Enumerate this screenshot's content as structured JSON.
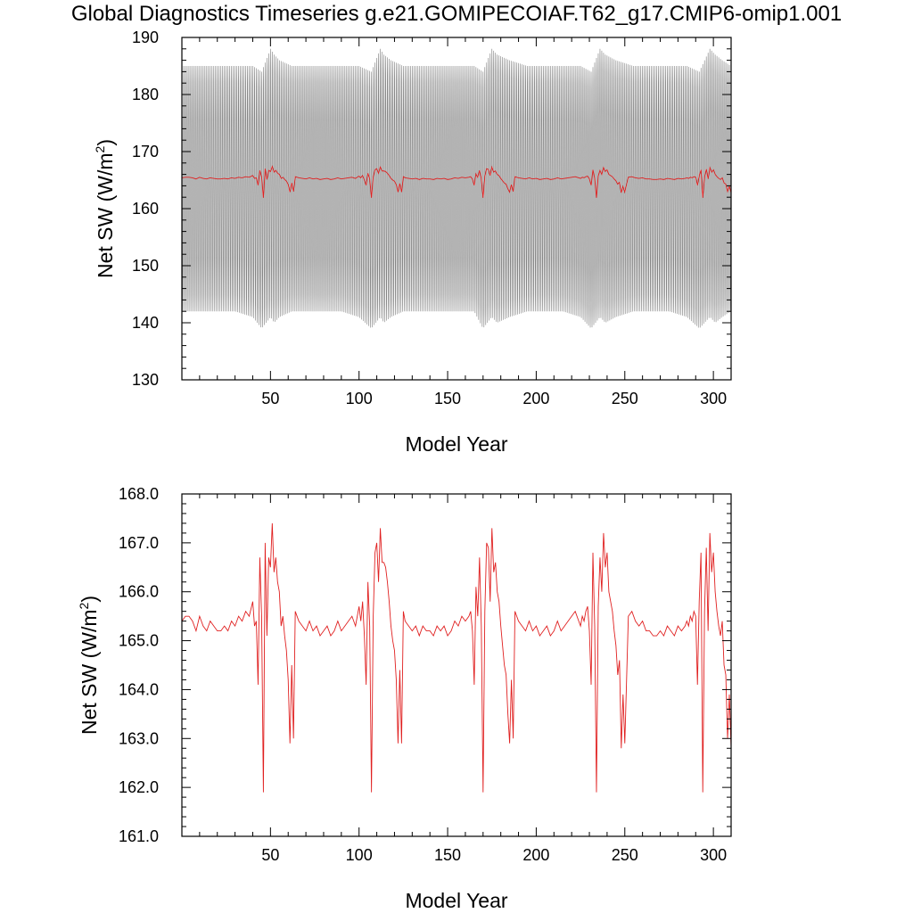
{
  "title": "Global Diagnostics Timeseries g.e21.GOMIPECOIAF.T62_g17.CMIP6-omip1.001",
  "chart_data": [
    {
      "type": "line",
      "xlabel": "Model Year",
      "ylabel": "Net SW (W/m²)",
      "ylabel_main": "Net SW (W/m",
      "ylabel_sup": "2",
      "ylabel_tail": ")",
      "xlim": [
        0,
        310
      ],
      "ylim": [
        130,
        190
      ],
      "x_ticks": [
        50,
        100,
        150,
        200,
        250,
        300
      ],
      "y_ticks": [
        130,
        140,
        150,
        160,
        170,
        180,
        190
      ],
      "tick_format": "int",
      "series": [
        {
          "color": "#808080",
          "style": "monthly-envelope",
          "x": [
            0,
            10,
            20,
            30,
            40,
            45,
            50,
            52,
            55,
            62,
            70,
            80,
            90,
            100,
            107,
            112,
            114,
            118,
            125,
            135,
            145,
            155,
            165,
            170,
            175,
            178,
            185,
            195,
            205,
            215,
            225,
            231,
            236,
            239,
            245,
            255,
            265,
            275,
            285,
            292,
            298,
            301,
            305,
            310
          ],
          "upper": [
            185,
            185,
            185,
            185,
            185,
            184,
            188,
            187,
            186,
            185,
            185,
            185,
            185,
            185,
            184,
            188,
            187,
            186,
            185,
            185,
            185,
            185,
            185,
            184,
            188,
            187,
            186,
            185,
            185,
            185,
            185,
            184,
            188,
            187,
            186,
            185,
            185,
            185,
            185,
            184,
            188,
            187,
            186,
            185
          ],
          "lower": [
            142,
            142,
            142,
            142,
            141,
            139,
            141,
            140,
            141,
            142,
            142,
            142,
            142,
            141,
            139,
            141,
            140,
            141,
            142,
            142,
            142,
            142,
            142,
            139,
            141,
            140,
            141,
            142,
            142,
            142,
            141,
            139,
            141,
            140,
            141,
            142,
            142,
            142,
            141,
            139,
            141,
            140,
            141,
            142
          ]
        },
        {
          "color": "#e02020",
          "style": "line",
          "x": [
            0,
            2,
            4,
            6,
            8,
            10,
            12,
            14,
            16,
            18,
            20,
            22,
            24,
            26,
            28,
            30,
            32,
            34,
            36,
            38,
            40,
            41,
            42,
            43,
            44,
            45,
            46,
            47,
            48,
            49,
            50,
            51,
            52,
            53,
            54,
            55,
            56,
            57,
            58,
            59,
            60,
            61,
            62,
            63,
            64,
            66,
            68,
            70,
            72,
            74,
            76,
            78,
            80,
            82,
            84,
            86,
            88,
            90,
            92,
            94,
            96,
            98,
            100,
            101,
            102,
            103,
            104,
            105,
            106,
            107,
            108,
            109,
            110,
            111,
            112,
            113,
            114,
            115,
            116,
            117,
            118,
            119,
            120,
            121,
            122,
            123,
            124,
            125,
            126,
            128,
            130,
            132,
            134,
            136,
            138,
            140,
            142,
            144,
            146,
            148,
            150,
            152,
            154,
            156,
            158,
            160,
            162,
            163,
            164,
            165,
            166,
            167,
            168,
            169,
            170,
            171,
            172,
            173,
            174,
            175,
            176,
            177,
            178,
            179,
            180,
            181,
            182,
            183,
            184,
            185,
            186,
            187,
            188,
            190,
            192,
            194,
            196,
            198,
            200,
            202,
            204,
            206,
            208,
            210,
            212,
            214,
            216,
            218,
            220,
            222,
            224,
            225,
            226,
            227,
            228,
            229,
            230,
            231,
            232,
            233,
            234,
            235,
            236,
            237,
            238,
            239,
            240,
            241,
            242,
            243,
            244,
            245,
            246,
            247,
            248,
            249,
            250,
            252,
            254,
            256,
            258,
            260,
            262,
            264,
            266,
            268,
            270,
            272,
            274,
            276,
            278,
            280,
            282,
            284,
            285,
            286,
            287,
            288,
            289,
            290,
            291,
            292,
            293,
            294,
            295,
            296,
            297,
            298,
            299,
            300,
            301,
            302,
            303,
            304,
            305,
            306,
            307,
            308,
            309,
            310
          ],
          "y": [
            165.4,
            165.5,
            165.5,
            165.4,
            165.2,
            165.5,
            165.3,
            165.2,
            165.4,
            165.3,
            165.2,
            165.2,
            165.3,
            165.2,
            165.4,
            165.3,
            165.5,
            165.4,
            165.6,
            165.5,
            165.8,
            165.3,
            165.4,
            164.1,
            166.7,
            165.5,
            161.9,
            167.0,
            165.1,
            166.7,
            166.5,
            167.4,
            166.4,
            166.7,
            166.2,
            166.0,
            165.3,
            165.5,
            165.1,
            164.8,
            164.2,
            162.9,
            164.5,
            163.0,
            165.6,
            165.4,
            165.3,
            165.2,
            165.4,
            165.2,
            165.3,
            165.1,
            165.2,
            165.3,
            165.1,
            165.2,
            165.4,
            165.2,
            165.3,
            165.4,
            165.5,
            165.3,
            165.7,
            165.4,
            165.8,
            165.1,
            164.1,
            166.2,
            165.3,
            161.9,
            165.5,
            166.8,
            167.0,
            166.2,
            167.3,
            166.6,
            166.6,
            166.5,
            166.2,
            165.8,
            165.3,
            165.0,
            164.8,
            164.2,
            162.9,
            164.4,
            162.9,
            165.6,
            165.4,
            165.3,
            165.2,
            165.3,
            165.1,
            165.3,
            165.2,
            165.2,
            165.1,
            165.3,
            165.2,
            165.3,
            165.1,
            165.2,
            165.4,
            165.3,
            165.5,
            165.4,
            165.5,
            165.6,
            165.2,
            164.1,
            166.1,
            165.5,
            166.7,
            165.3,
            161.9,
            165.6,
            167.0,
            166.9,
            165.8,
            167.3,
            166.4,
            166.6,
            166.0,
            165.8,
            165.3,
            164.9,
            164.5,
            164.3,
            163.5,
            162.9,
            164.2,
            163.0,
            165.6,
            165.4,
            165.3,
            165.2,
            165.4,
            165.2,
            165.3,
            165.1,
            165.2,
            165.3,
            165.1,
            165.2,
            165.4,
            165.2,
            165.3,
            165.4,
            165.5,
            165.6,
            165.4,
            165.3,
            165.5,
            165.4,
            165.6,
            165.7,
            165.2,
            164.1,
            166.8,
            165.3,
            161.9,
            165.7,
            166.7,
            166.0,
            167.2,
            166.5,
            166.8,
            166.0,
            165.8,
            165.6,
            165.2,
            164.9,
            164.3,
            164.6,
            162.8,
            163.9,
            162.9,
            165.5,
            165.6,
            165.4,
            165.3,
            165.4,
            165.2,
            165.2,
            165.1,
            165.1,
            165.2,
            165.1,
            165.3,
            165.2,
            165.1,
            165.3,
            165.2,
            165.3,
            165.4,
            165.3,
            165.5,
            165.4,
            165.6,
            165.5,
            164.1,
            165.8,
            166.8,
            161.9,
            165.6,
            166.9,
            165.2,
            167.2,
            166.4,
            166.8,
            166.0,
            165.6,
            165.3,
            165.1,
            165.4,
            164.5,
            164.3,
            163.0,
            163.9,
            162.8
          ]
        }
      ]
    },
    {
      "type": "line",
      "xlabel": "Model Year",
      "ylabel": "Net SW (W/m²)",
      "ylabel_main": "Net SW (W/m",
      "ylabel_sup": "2",
      "ylabel_tail": ")",
      "xlim": [
        0,
        310
      ],
      "ylim": [
        161.0,
        168.0
      ],
      "x_ticks": [
        50,
        100,
        150,
        200,
        250,
        300
      ],
      "y_ticks": [
        161.0,
        162.0,
        163.0,
        164.0,
        165.0,
        166.0,
        167.0,
        168.0
      ],
      "tick_format": "fixed1",
      "series": [
        {
          "color": "#e02020",
          "style": "line",
          "x": [
            0,
            2,
            4,
            6,
            8,
            10,
            12,
            14,
            16,
            18,
            20,
            22,
            24,
            26,
            28,
            30,
            32,
            34,
            36,
            38,
            40,
            41,
            42,
            43,
            44,
            45,
            46,
            47,
            48,
            49,
            50,
            51,
            52,
            53,
            54,
            55,
            56,
            57,
            58,
            59,
            60,
            61,
            62,
            63,
            64,
            66,
            68,
            70,
            72,
            74,
            76,
            78,
            80,
            82,
            84,
            86,
            88,
            90,
            92,
            94,
            96,
            98,
            100,
            101,
            102,
            103,
            104,
            105,
            106,
            107,
            108,
            109,
            110,
            111,
            112,
            113,
            114,
            115,
            116,
            117,
            118,
            119,
            120,
            121,
            122,
            123,
            124,
            125,
            126,
            128,
            130,
            132,
            134,
            136,
            138,
            140,
            142,
            144,
            146,
            148,
            150,
            152,
            154,
            156,
            158,
            160,
            162,
            163,
            164,
            165,
            166,
            167,
            168,
            169,
            170,
            171,
            172,
            173,
            174,
            175,
            176,
            177,
            178,
            179,
            180,
            181,
            182,
            183,
            184,
            185,
            186,
            187,
            188,
            190,
            192,
            194,
            196,
            198,
            200,
            202,
            204,
            206,
            208,
            210,
            212,
            214,
            216,
            218,
            220,
            222,
            224,
            225,
            226,
            227,
            228,
            229,
            230,
            231,
            232,
            233,
            234,
            235,
            236,
            237,
            238,
            239,
            240,
            241,
            242,
            243,
            244,
            245,
            246,
            247,
            248,
            249,
            250,
            252,
            254,
            256,
            258,
            260,
            262,
            264,
            266,
            268,
            270,
            272,
            274,
            276,
            278,
            280,
            282,
            284,
            285,
            286,
            287,
            288,
            289,
            290,
            291,
            292,
            293,
            294,
            295,
            296,
            297,
            298,
            299,
            300,
            301,
            302,
            303,
            304,
            305,
            306,
            307,
            308,
            309,
            310
          ],
          "y": [
            165.4,
            165.5,
            165.5,
            165.4,
            165.2,
            165.5,
            165.3,
            165.2,
            165.4,
            165.3,
            165.2,
            165.2,
            165.3,
            165.2,
            165.4,
            165.3,
            165.5,
            165.4,
            165.6,
            165.5,
            165.8,
            165.3,
            165.4,
            164.1,
            166.7,
            165.5,
            161.9,
            167.0,
            165.1,
            166.7,
            166.5,
            167.4,
            166.4,
            166.7,
            166.2,
            166.0,
            165.3,
            165.5,
            165.1,
            164.8,
            164.2,
            162.9,
            164.5,
            163.0,
            165.6,
            165.4,
            165.3,
            165.2,
            165.4,
            165.2,
            165.3,
            165.1,
            165.2,
            165.3,
            165.1,
            165.2,
            165.4,
            165.2,
            165.3,
            165.4,
            165.5,
            165.3,
            165.7,
            165.4,
            165.8,
            165.1,
            164.1,
            166.2,
            165.3,
            161.9,
            165.5,
            166.8,
            167.0,
            166.2,
            167.3,
            166.6,
            166.6,
            166.5,
            166.2,
            165.8,
            165.3,
            165.0,
            164.8,
            164.2,
            162.9,
            164.4,
            162.9,
            165.6,
            165.4,
            165.3,
            165.2,
            165.3,
            165.1,
            165.3,
            165.2,
            165.2,
            165.1,
            165.3,
            165.2,
            165.3,
            165.1,
            165.2,
            165.4,
            165.3,
            165.5,
            165.4,
            165.5,
            165.6,
            165.2,
            164.1,
            166.1,
            165.5,
            166.7,
            165.3,
            161.9,
            165.6,
            167.0,
            166.9,
            165.8,
            167.3,
            166.4,
            166.6,
            166.0,
            165.8,
            165.3,
            164.9,
            164.5,
            164.3,
            163.5,
            162.9,
            164.2,
            163.0,
            165.6,
            165.4,
            165.3,
            165.2,
            165.4,
            165.2,
            165.3,
            165.1,
            165.2,
            165.3,
            165.1,
            165.2,
            165.4,
            165.2,
            165.3,
            165.4,
            165.5,
            165.6,
            165.4,
            165.3,
            165.5,
            165.4,
            165.6,
            165.7,
            165.2,
            164.1,
            166.8,
            165.3,
            161.9,
            165.7,
            166.7,
            166.0,
            167.2,
            166.5,
            166.8,
            166.0,
            165.8,
            165.6,
            165.2,
            164.9,
            164.3,
            164.6,
            162.8,
            163.9,
            162.9,
            165.5,
            165.6,
            165.4,
            165.3,
            165.4,
            165.2,
            165.2,
            165.1,
            165.1,
            165.2,
            165.1,
            165.3,
            165.2,
            165.1,
            165.3,
            165.2,
            165.3,
            165.4,
            165.3,
            165.5,
            165.4,
            165.6,
            165.5,
            164.1,
            165.8,
            166.8,
            161.9,
            165.6,
            166.9,
            165.2,
            167.2,
            166.4,
            166.8,
            166.0,
            165.6,
            165.3,
            165.1,
            165.4,
            164.5,
            164.3,
            163.0,
            163.9,
            162.8
          ]
        }
      ]
    }
  ]
}
